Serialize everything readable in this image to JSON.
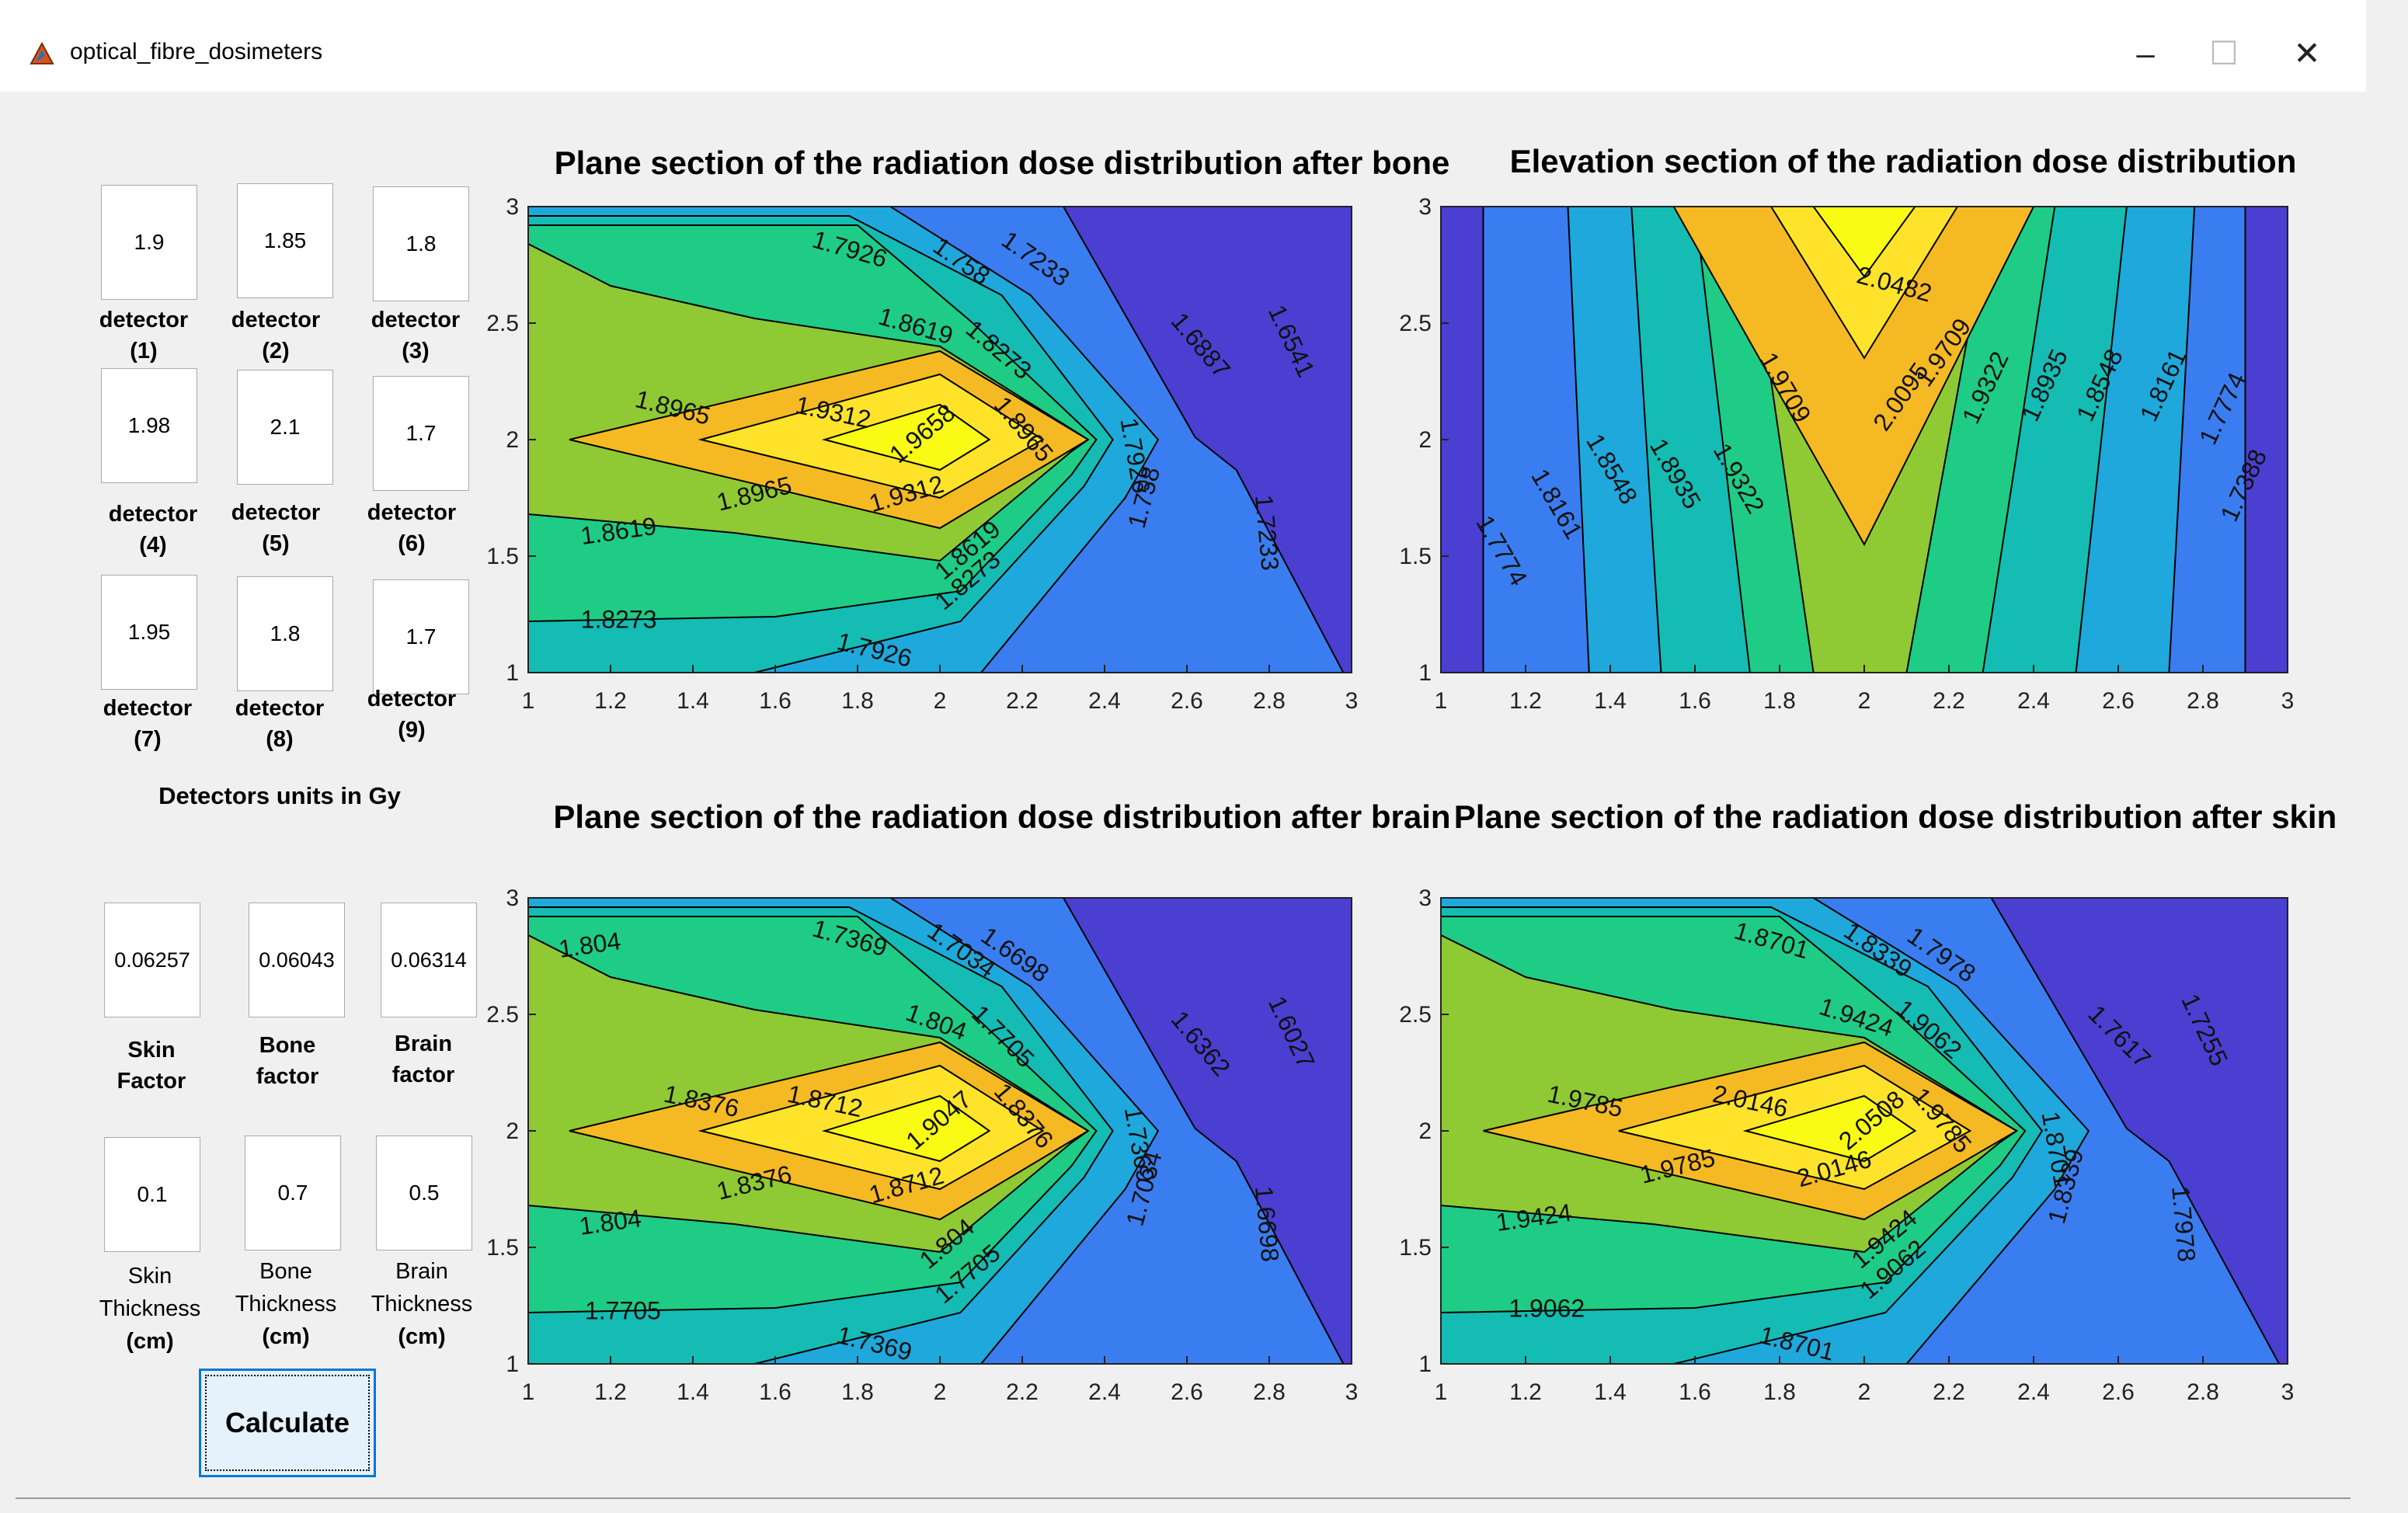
{
  "window": {
    "title": "optical_fibre_dosimeters",
    "minimize": "–",
    "maximize": "☐",
    "close": "✕"
  },
  "detectors": [
    {
      "value": "1.9",
      "label": "detector",
      "index": "(1)"
    },
    {
      "value": "1.85",
      "label": "detector",
      "index": "(2)"
    },
    {
      "value": "1.8",
      "label": "detector",
      "index": "(3)"
    },
    {
      "value": "1.98",
      "label": "detector",
      "index": "(4)"
    },
    {
      "value": "2.1",
      "label": "detector",
      "index": "(5)"
    },
    {
      "value": "1.7",
      "label": "detector",
      "index": "(6)"
    },
    {
      "value": "1.95",
      "label": "detector",
      "index": "(7)"
    },
    {
      "value": "1.8",
      "label": "detector",
      "index": "(8)"
    },
    {
      "value": "1.7",
      "label": "detector",
      "index": "(9)"
    }
  ],
  "units_label": "Detectors units in  Gy",
  "factors": [
    {
      "value": "0.06257",
      "line1": "Skin",
      "line2": "Factor"
    },
    {
      "value": "0.06043",
      "line1": "Bone",
      "line2": "factor"
    },
    {
      "value": "0.06314",
      "line1": "Brain",
      "line2": "factor"
    }
  ],
  "thickness": [
    {
      "value": "0.1",
      "line1": "Skin",
      "line2": "Thickness",
      "line3": "(cm)"
    },
    {
      "value": "0.7",
      "line1": "Bone",
      "line2": "Thickness",
      "line3": "(cm)"
    },
    {
      "value": "0.5",
      "line1": "Brain",
      "line2": "Thickness",
      "line3": "(cm)"
    }
  ],
  "calculate_label": "Calculate",
  "colors": {
    "lvl0": "#3a2aa8",
    "lvl1": "#4a3fd0",
    "lvl2": "#3a7df0",
    "lvl3": "#1fa8dc",
    "lvl4": "#14bcb3",
    "lvl5": "#1ecc86",
    "lvl6": "#8fc933",
    "lvl7": "#f5b923",
    "lvl8": "#fee32a",
    "lvl9": "#f9fb14"
  },
  "chart_data": [
    {
      "type": "contour",
      "title": "Plane section of the radiation dose distribution after  bone",
      "xlim": [
        1,
        3
      ],
      "ylim": [
        1,
        3
      ],
      "xticks": [
        "1",
        "1.2",
        "1.4",
        "1.6",
        "1.8",
        "2",
        "2.2",
        "2.4",
        "2.6",
        "2.8",
        "3"
      ],
      "yticks": [
        "1",
        "1.5",
        "2",
        "2.5",
        "3"
      ],
      "contour_levels": [
        "1.6541",
        "1.6887",
        "1.7233",
        "1.758",
        "1.7926",
        "1.8273",
        "1.8619",
        "1.8965",
        "1.9312",
        "1.9658"
      ],
      "labels": [
        {
          "text": "1.7926",
          "x": 1.78,
          "y": 2.81,
          "rot": 16
        },
        {
          "text": "1.758",
          "x": 2.05,
          "y": 2.76,
          "rot": 35
        },
        {
          "text": "1.7233",
          "x": 2.23,
          "y": 2.77,
          "rot": 35
        },
        {
          "text": "1.8619",
          "x": 1.94,
          "y": 2.48,
          "rot": 16
        },
        {
          "text": "1.8273",
          "x": 2.14,
          "y": 2.38,
          "rot": 40
        },
        {
          "text": "1.6887",
          "x": 2.63,
          "y": 2.4,
          "rot": 50
        },
        {
          "text": "1.6541",
          "x": 2.85,
          "y": 2.42,
          "rot": 65
        },
        {
          "text": "1.8965",
          "x": 1.35,
          "y": 2.13,
          "rot": 14
        },
        {
          "text": "1.9312",
          "x": 1.74,
          "y": 2.11,
          "rot": 12
        },
        {
          "text": "1.9658",
          "x": 1.96,
          "y": 2.02,
          "rot": -40
        },
        {
          "text": "1.8965",
          "x": 2.2,
          "y": 2.04,
          "rot": 50
        },
        {
          "text": "1.8965",
          "x": 1.55,
          "y": 1.76,
          "rot": -14
        },
        {
          "text": "1.9312",
          "x": 1.92,
          "y": 1.76,
          "rot": -16
        },
        {
          "text": "1.7926",
          "x": 2.47,
          "y": 1.93,
          "rot": 80
        },
        {
          "text": "1.758",
          "x": 2.5,
          "y": 1.75,
          "rot": -75
        },
        {
          "text": "1.7233",
          "x": 2.79,
          "y": 1.6,
          "rot": 85
        },
        {
          "text": "1.8619",
          "x": 1.22,
          "y": 1.6,
          "rot": -8
        },
        {
          "text": "1.8619",
          "x": 2.07,
          "y": 1.52,
          "rot": -40
        },
        {
          "text": "1.8273",
          "x": 2.07,
          "y": 1.39,
          "rot": -40
        },
        {
          "text": "1.8273",
          "x": 1.22,
          "y": 1.22,
          "rot": 0
        },
        {
          "text": "1.7926",
          "x": 1.84,
          "y": 1.09,
          "rot": 14
        }
      ]
    },
    {
      "type": "contour",
      "title": "Elevation section  of the radiation dose distribution",
      "xlim": [
        1,
        3
      ],
      "ylim": [
        1,
        3
      ],
      "xticks": [
        "1",
        "1.2",
        "1.4",
        "1.6",
        "1.8",
        "2",
        "2.2",
        "2.4",
        "2.6",
        "2.8",
        "3"
      ],
      "yticks": [
        "1",
        "1.5",
        "2",
        "2.5",
        "3"
      ],
      "contour_levels": [
        "1.7388",
        "1.7774",
        "1.8161",
        "1.8548",
        "1.8935",
        "1.9322",
        "1.9709",
        "2.0095",
        "2.0482"
      ],
      "labels": [
        {
          "text": "2.0482",
          "x": 2.07,
          "y": 2.66,
          "rot": 15
        },
        {
          "text": "1.9709",
          "x": 2.19,
          "y": 2.37,
          "rot": -55
        },
        {
          "text": "2.0095",
          "x": 2.09,
          "y": 2.18,
          "rot": -55
        },
        {
          "text": "1.9709",
          "x": 1.81,
          "y": 2.22,
          "rot": 60
        },
        {
          "text": "1.9322",
          "x": 2.29,
          "y": 2.22,
          "rot": -65
        },
        {
          "text": "1.8935",
          "x": 2.43,
          "y": 2.23,
          "rot": -65
        },
        {
          "text": "1.8548",
          "x": 2.56,
          "y": 2.23,
          "rot": -65
        },
        {
          "text": "1.8161",
          "x": 2.71,
          "y": 2.23,
          "rot": -65
        },
        {
          "text": "1.7774",
          "x": 2.85,
          "y": 2.13,
          "rot": -65
        },
        {
          "text": "1.7388",
          "x": 2.9,
          "y": 1.8,
          "rot": -65
        },
        {
          "text": "1.9322",
          "x": 1.7,
          "y": 1.83,
          "rot": 60
        },
        {
          "text": "1.8935",
          "x": 1.55,
          "y": 1.85,
          "rot": 60
        },
        {
          "text": "1.8548",
          "x": 1.4,
          "y": 1.87,
          "rot": 60
        },
        {
          "text": "1.8161",
          "x": 1.27,
          "y": 1.72,
          "rot": 60
        },
        {
          "text": "1.7774",
          "x": 1.14,
          "y": 1.52,
          "rot": 60
        }
      ]
    },
    {
      "type": "contour",
      "title": "Plane section of the radiation dose distribution after brain",
      "xlim": [
        1,
        3
      ],
      "ylim": [
        1,
        3
      ],
      "xticks": [
        "1",
        "1.2",
        "1.4",
        "1.6",
        "1.8",
        "2",
        "2.2",
        "2.4",
        "2.6",
        "2.8",
        "3"
      ],
      "yticks": [
        "1",
        "1.5",
        "2",
        "2.5",
        "3"
      ],
      "contour_levels": [
        "1.6027",
        "1.6362",
        "1.6698",
        "1.7034",
        "1.7369",
        "1.7705",
        "1.804",
        "1.8376",
        "1.8712",
        "1.9047"
      ],
      "labels": [
        {
          "text": "1.804",
          "x": 1.15,
          "y": 2.79,
          "rot": -8
        },
        {
          "text": "1.7369",
          "x": 1.78,
          "y": 2.82,
          "rot": 16
        },
        {
          "text": "1.7034",
          "x": 2.05,
          "y": 2.77,
          "rot": 35
        },
        {
          "text": "1.6698",
          "x": 2.18,
          "y": 2.75,
          "rot": 35
        },
        {
          "text": "1.804",
          "x": 1.99,
          "y": 2.46,
          "rot": 20
        },
        {
          "text": "1.7705",
          "x": 2.15,
          "y": 2.4,
          "rot": 45
        },
        {
          "text": "1.6362",
          "x": 2.63,
          "y": 2.37,
          "rot": 50
        },
        {
          "text": "1.6027",
          "x": 2.85,
          "y": 2.42,
          "rot": 65
        },
        {
          "text": "1.8376",
          "x": 1.42,
          "y": 2.12,
          "rot": 12
        },
        {
          "text": "1.8712",
          "x": 1.72,
          "y": 2.12,
          "rot": 12
        },
        {
          "text": "1.9047",
          "x": 2.0,
          "y": 2.04,
          "rot": -40
        },
        {
          "text": "1.8376",
          "x": 2.2,
          "y": 2.06,
          "rot": 50
        },
        {
          "text": "1.8376",
          "x": 1.55,
          "y": 1.77,
          "rot": -14
        },
        {
          "text": "1.8712",
          "x": 1.92,
          "y": 1.76,
          "rot": -16
        },
        {
          "text": "1.7369",
          "x": 2.48,
          "y": 1.94,
          "rot": 80
        },
        {
          "text": "1.7034",
          "x": 2.5,
          "y": 1.75,
          "rot": -75
        },
        {
          "text": "1.6698",
          "x": 2.79,
          "y": 1.6,
          "rot": 85
        },
        {
          "text": "1.804",
          "x": 1.2,
          "y": 1.6,
          "rot": -8
        },
        {
          "text": "1.804",
          "x": 2.02,
          "y": 1.51,
          "rot": -40
        },
        {
          "text": "1.7705",
          "x": 2.07,
          "y": 1.38,
          "rot": -40
        },
        {
          "text": "1.7705",
          "x": 1.23,
          "y": 1.22,
          "rot": 0
        },
        {
          "text": "1.7369",
          "x": 1.84,
          "y": 1.08,
          "rot": 14
        }
      ]
    },
    {
      "type": "contour",
      "title": "Plane section of the radiation dose distribution after skin",
      "xlim": [
        1,
        3
      ],
      "ylim": [
        1,
        3
      ],
      "xticks": [
        "1",
        "1.2",
        "1.4",
        "1.6",
        "1.8",
        "2",
        "2.2",
        "2.4",
        "2.6",
        "2.8",
        "3"
      ],
      "yticks": [
        "1",
        "1.5",
        "2",
        "2.5",
        "3"
      ],
      "contour_levels": [
        "1.7255",
        "1.7617",
        "1.7978",
        "1.8339",
        "1.8701",
        "1.9062",
        "1.9424",
        "1.9785",
        "2.0146",
        "2.0508"
      ],
      "labels": [
        {
          "text": "1.8701",
          "x": 1.78,
          "y": 2.81,
          "rot": 16
        },
        {
          "text": "1.8339",
          "x": 2.03,
          "y": 2.77,
          "rot": 35
        },
        {
          "text": "1.7978",
          "x": 2.18,
          "y": 2.75,
          "rot": 35
        },
        {
          "text": "1.9424",
          "x": 1.98,
          "y": 2.48,
          "rot": 18
        },
        {
          "text": "1.9062",
          "x": 2.15,
          "y": 2.43,
          "rot": 40
        },
        {
          "text": "1.7617",
          "x": 2.6,
          "y": 2.4,
          "rot": 45
        },
        {
          "text": "1.7255",
          "x": 2.8,
          "y": 2.43,
          "rot": 65
        },
        {
          "text": "1.9785",
          "x": 1.34,
          "y": 2.12,
          "rot": 12
        },
        {
          "text": "2.0146",
          "x": 1.73,
          "y": 2.12,
          "rot": 12
        },
        {
          "text": "2.0508",
          "x": 2.02,
          "y": 2.04,
          "rot": -40
        },
        {
          "text": "1.9785",
          "x": 2.18,
          "y": 2.04,
          "rot": 50
        },
        {
          "text": "1.9785",
          "x": 1.56,
          "y": 1.84,
          "rot": -14
        },
        {
          "text": "2.0146",
          "x": 1.93,
          "y": 1.83,
          "rot": -16
        },
        {
          "text": "1.8701",
          "x": 2.45,
          "y": 1.92,
          "rot": 80
        },
        {
          "text": "1.8339",
          "x": 2.48,
          "y": 1.76,
          "rot": -75
        },
        {
          "text": "1.7978",
          "x": 2.75,
          "y": 1.6,
          "rot": 85
        },
        {
          "text": "1.9424",
          "x": 1.22,
          "y": 1.62,
          "rot": -8
        },
        {
          "text": "1.9424",
          "x": 2.05,
          "y": 1.53,
          "rot": -40
        },
        {
          "text": "1.9062",
          "x": 2.07,
          "y": 1.4,
          "rot": -40
        },
        {
          "text": "1.9062",
          "x": 1.25,
          "y": 1.23,
          "rot": 0
        },
        {
          "text": "1.8701",
          "x": 1.84,
          "y": 1.08,
          "rot": 14
        }
      ]
    }
  ]
}
